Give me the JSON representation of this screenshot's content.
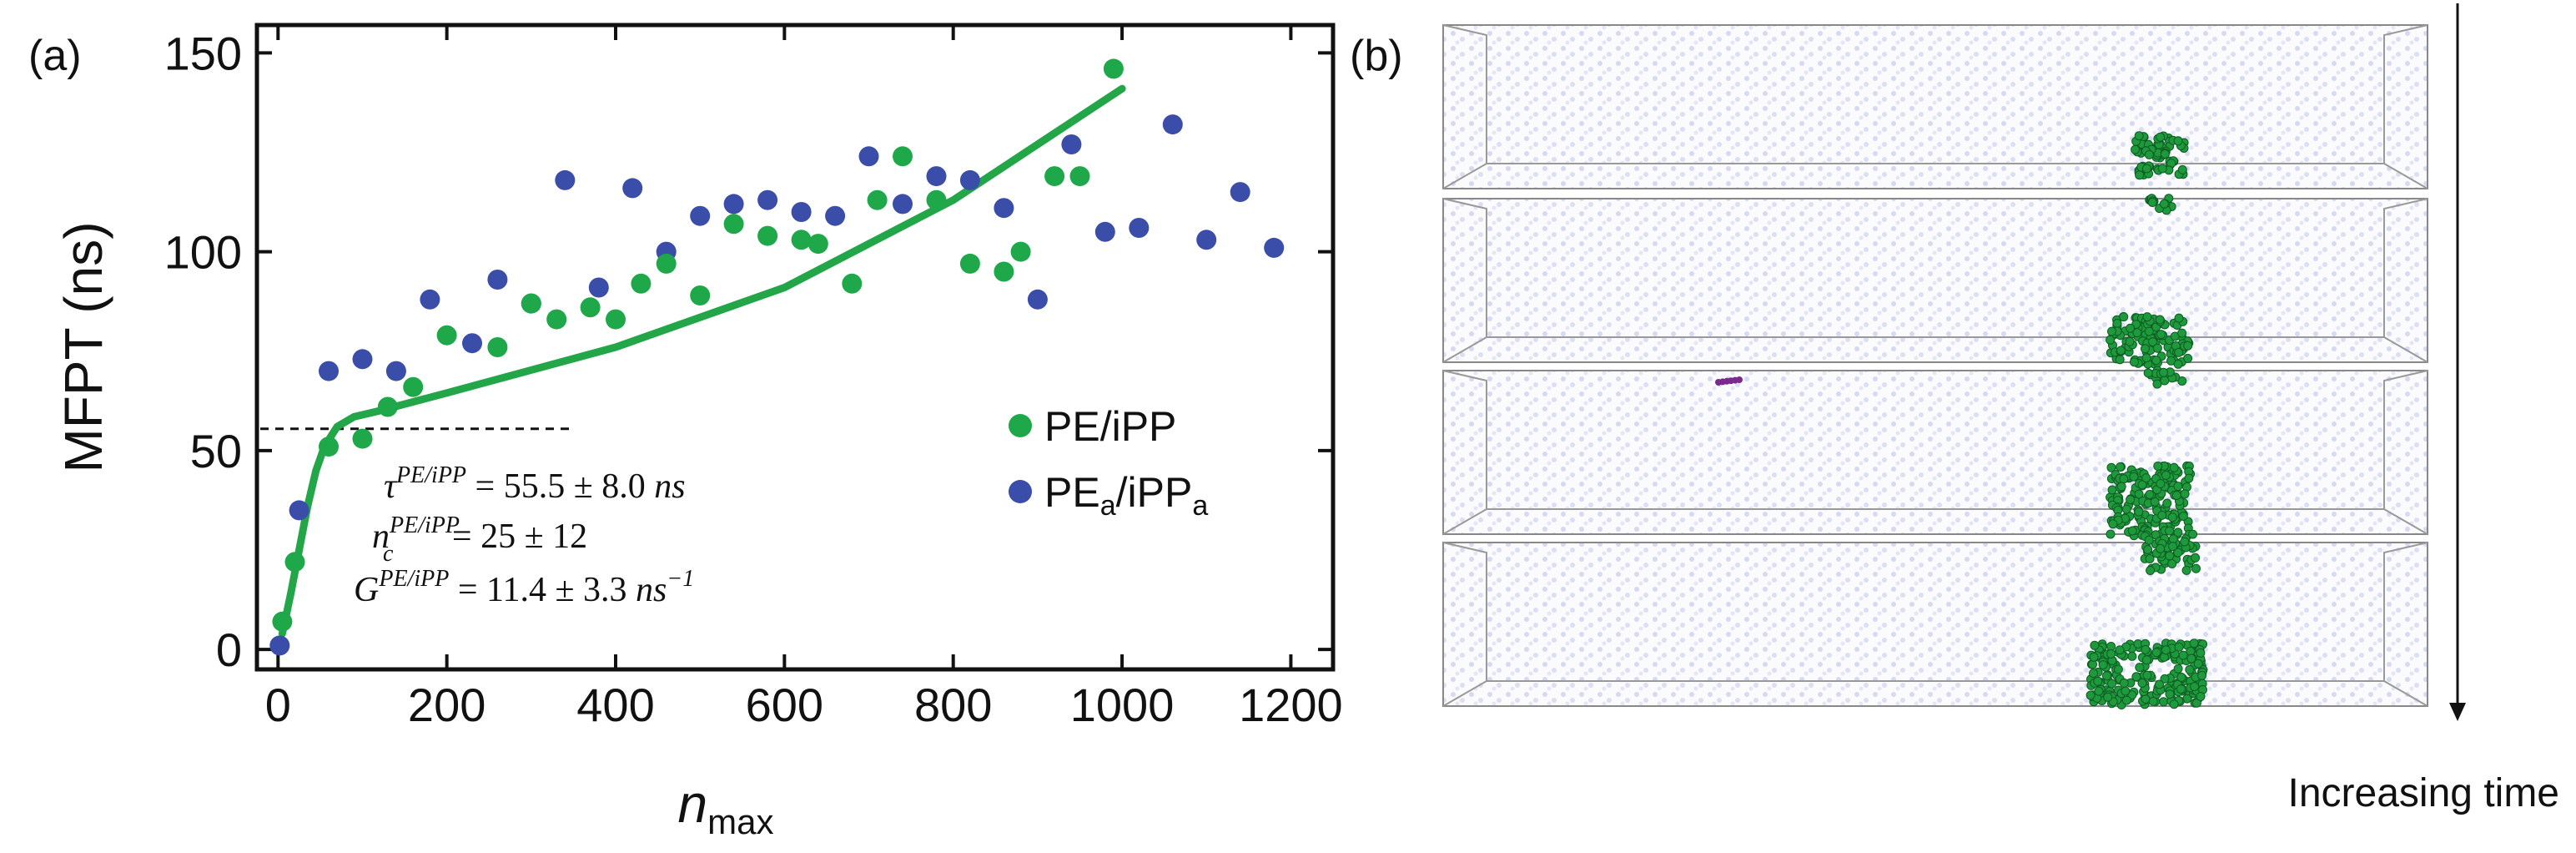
{
  "panel_a_label": "(a)",
  "panel_b_label": "(b)",
  "arrow_label": "Increasing time",
  "colors": {
    "green": "#1fa84a",
    "blue": "#3a4da8",
    "fit": "#22a648",
    "sim_dots": "#cfd3f0",
    "cluster": "#1e9a3c",
    "purple": "#7a2a8a"
  },
  "chart_data": {
    "type": "scatter",
    "title": "",
    "xlabel": "n",
    "xlabel_sub": "max",
    "ylabel": "MFPT (ns)",
    "xlim": [
      -25,
      1250
    ],
    "ylim": [
      -5,
      157
    ],
    "xticks": [
      0,
      200,
      400,
      600,
      800,
      1000,
      1200
    ],
    "yticks": [
      0,
      50,
      100,
      150
    ],
    "legend_position": "right",
    "tau_line": {
      "y": 55.5,
      "x_end": 350
    },
    "series": [
      {
        "name": "PE/iPP",
        "color": "#1fa84a",
        "points": [
          [
            5,
            7
          ],
          [
            20,
            22
          ],
          [
            60,
            51
          ],
          [
            100,
            53
          ],
          [
            130,
            61
          ],
          [
            160,
            66
          ],
          [
            200,
            79
          ],
          [
            260,
            76
          ],
          [
            300,
            87
          ],
          [
            330,
            83
          ],
          [
            370,
            86
          ],
          [
            400,
            83
          ],
          [
            430,
            92
          ],
          [
            460,
            97
          ],
          [
            500,
            89
          ],
          [
            540,
            107
          ],
          [
            580,
            104
          ],
          [
            620,
            103
          ],
          [
            640,
            102
          ],
          [
            680,
            92
          ],
          [
            710,
            113
          ],
          [
            740,
            124
          ],
          [
            780,
            113
          ],
          [
            820,
            97
          ],
          [
            860,
            95
          ],
          [
            880,
            100
          ],
          [
            920,
            119
          ],
          [
            950,
            119
          ],
          [
            990,
            146
          ]
        ]
      },
      {
        "name": "PE",
        "name_sub": "a",
        "name_mid": "/iPP",
        "name_sub2": "a",
        "color": "#3a4da8",
        "points": [
          [
            2,
            1
          ],
          [
            25,
            35
          ],
          [
            60,
            70
          ],
          [
            100,
            73
          ],
          [
            140,
            70
          ],
          [
            180,
            88
          ],
          [
            230,
            77
          ],
          [
            260,
            93
          ],
          [
            300,
            87
          ],
          [
            340,
            118
          ],
          [
            380,
            91
          ],
          [
            420,
            116
          ],
          [
            460,
            100
          ],
          [
            500,
            109
          ],
          [
            540,
            112
          ],
          [
            580,
            113
          ],
          [
            620,
            110
          ],
          [
            660,
            109
          ],
          [
            700,
            124
          ],
          [
            740,
            112
          ],
          [
            780,
            119
          ],
          [
            820,
            118
          ],
          [
            860,
            111
          ],
          [
            900,
            88
          ],
          [
            940,
            127
          ],
          [
            980,
            105
          ],
          [
            1020,
            106
          ],
          [
            1060,
            132
          ],
          [
            1100,
            103
          ],
          [
            1140,
            115
          ],
          [
            1180,
            101
          ]
        ]
      }
    ],
    "fit_curve": [
      [
        5,
        4
      ],
      [
        15,
        14
      ],
      [
        25,
        25
      ],
      [
        35,
        36
      ],
      [
        45,
        45
      ],
      [
        55,
        51
      ],
      [
        70,
        56
      ],
      [
        90,
        58.5
      ],
      [
        120,
        60
      ],
      [
        200,
        64.5
      ],
      [
        400,
        76
      ],
      [
        600,
        91
      ],
      [
        800,
        113
      ],
      [
        1000,
        141
      ]
    ],
    "annotation_lines": [
      {
        "prefix": "τ",
        "sup": "PE/iPP",
        "rest": " = 55.5 ± 8.0 ",
        "unit": "ns",
        "unit_sup": ""
      },
      {
        "prefix": "n",
        "sub": "c",
        "sup": "PE/iPP",
        "rest": " = 25 ± 12",
        "unit": "",
        "unit_sup": ""
      },
      {
        "prefix": "G",
        "sup": "PE/iPP",
        "rest": " = 11.4 ± 3.3 ",
        "unit": "ns",
        "unit_sup": "−1"
      }
    ]
  }
}
